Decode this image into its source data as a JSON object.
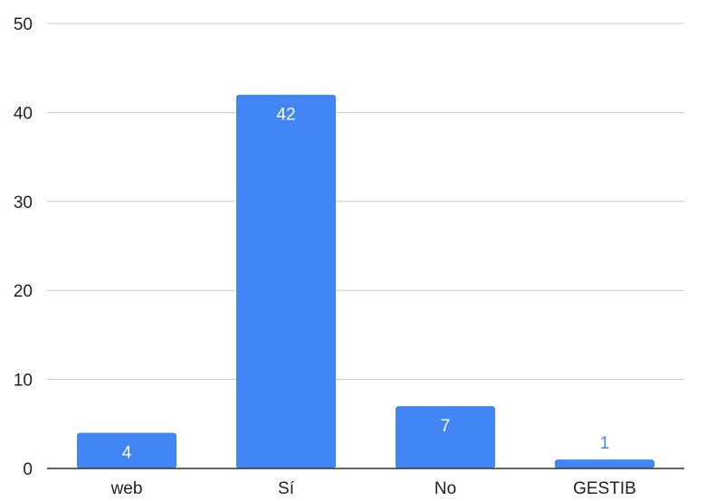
{
  "chart_data": {
    "type": "bar",
    "categories": [
      "web",
      "Sí",
      "No",
      "GESTIB"
    ],
    "values": [
      4,
      42,
      7,
      1
    ],
    "data_labels": [
      "4",
      "42",
      "7",
      "1"
    ],
    "title": "",
    "xlabel": "",
    "ylabel": "",
    "ylim": [
      0,
      50
    ],
    "yticks": [
      0,
      10,
      20,
      30,
      40,
      50
    ],
    "ytick_labels": [
      "0",
      "10",
      "20",
      "30",
      "40",
      "50"
    ],
    "grid": true,
    "legend": "none",
    "colors": {
      "bar": "#4285f4",
      "grid": "#cccccc",
      "axis": "#333333",
      "label_inside": "#ffffff",
      "label_outside": "#4285f4"
    }
  }
}
